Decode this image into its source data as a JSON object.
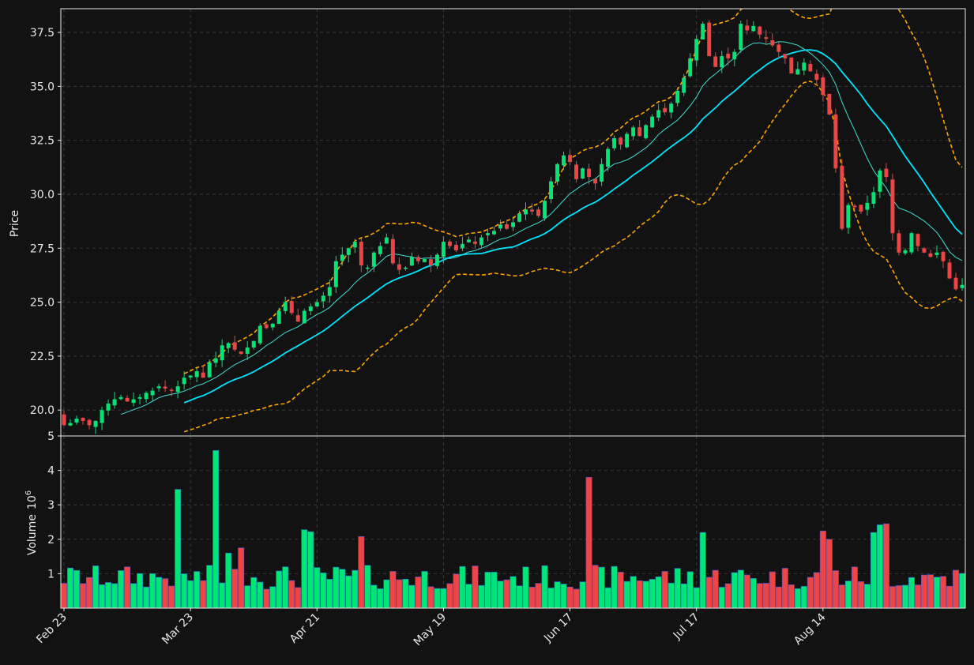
{
  "chart_data": {
    "type": "candlestick",
    "colors": {
      "background": "#121212",
      "up": "#00e676",
      "down": "#ef4444",
      "edge": "#3b5bdb",
      "grid": "#3a3a3a",
      "sma_fast": "#40e0d0",
      "sma_slow": "#00e5ff",
      "bands": "#ffa500"
    },
    "price_panel": {
      "ylabel": "Price",
      "ylim": [
        18.8,
        38.6
      ],
      "yticks": [
        20.0,
        22.5,
        25.0,
        27.5,
        30.0,
        32.5,
        35.0,
        37.5
      ],
      "ytick_labels": [
        "20.0",
        "22.5",
        "25.0",
        "27.5",
        "30.0",
        "32.5",
        "35.0",
        "37.5"
      ],
      "grid": true
    },
    "volume_panel": {
      "ylabel": "Volume",
      "ylabel_exponent": "10",
      "ylabel_power": "6",
      "ylim": [
        0.0,
        5.0
      ],
      "yticks": [
        1,
        2,
        3,
        4,
        5
      ],
      "ytick_labels": [
        "1",
        "2",
        "3",
        "4",
        "5"
      ],
      "grid": true
    },
    "xtick_indices": [
      0,
      20,
      40,
      60,
      80,
      100,
      120
    ],
    "xtick_labels": [
      "Feb 23",
      "Mar 23",
      "Apr 21",
      "May 19",
      "Jun 17",
      "Jul 17",
      "Aug 14"
    ],
    "close": [
      19.3,
      19.4,
      19.6,
      19.5,
      19.3,
      19.5,
      20.0,
      20.3,
      20.5,
      20.6,
      20.4,
      20.5,
      20.6,
      20.8,
      20.9,
      21.1,
      21.0,
      20.9,
      21.1,
      21.5,
      21.6,
      21.8,
      21.5,
      22.2,
      22.4,
      23.0,
      23.1,
      22.8,
      22.6,
      22.9,
      23.2,
      23.9,
      23.8,
      24.0,
      24.6,
      25.0,
      24.5,
      24.1,
      24.6,
      24.8,
      25.0,
      25.3,
      25.7,
      26.9,
      27.2,
      27.5,
      27.8,
      26.7,
      26.6,
      27.3,
      27.6,
      28.0,
      26.8,
      26.5,
      26.6,
      27.1,
      26.9,
      27.0,
      26.7,
      27.2,
      27.8,
      27.6,
      27.4,
      27.7,
      27.9,
      27.7,
      28.0,
      28.2,
      28.3,
      28.6,
      28.4,
      28.7,
      29.1,
      29.3,
      29.2,
      29.0,
      29.7,
      30.6,
      31.4,
      31.8,
      31.5,
      30.7,
      31.2,
      30.8,
      30.5,
      31.4,
      32.1,
      32.6,
      32.3,
      32.8,
      33.1,
      32.7,
      33.2,
      33.6,
      33.9,
      33.8,
      34.2,
      34.8,
      35.4,
      36.3,
      37.2,
      37.9,
      36.4,
      35.9,
      36.4,
      36.3,
      36.6,
      37.9,
      37.6,
      37.8,
      37.4,
      37.2,
      36.9,
      36.6,
      36.3,
      35.6,
      35.8,
      36.1,
      35.7,
      35.3,
      34.6,
      33.7,
      31.2,
      28.4,
      29.5,
      29.4,
      29.2,
      29.6,
      30.1,
      31.1,
      30.8,
      28.2,
      27.3,
      27.4,
      28.2,
      27.6,
      27.3,
      27.1,
      27.3,
      26.9,
      26.1,
      25.6,
      25.8
    ]
  }
}
